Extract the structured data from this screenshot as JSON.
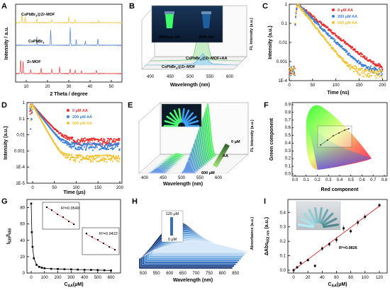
{
  "panels": {
    "A": {
      "letter": "A",
      "xlabel": "2 Theta / degree",
      "ylabel": "Intensity / a.u.",
      "xticks": [
        "10",
        "20",
        "30",
        "40",
        "50"
      ],
      "series": [
        {
          "name": "CsPbBr3@Zr-MOF",
          "color": "#f5c242"
        },
        {
          "name": "CsPbBr3",
          "color": "#4a7bd6"
        },
        {
          "name": "Zr-MOF",
          "color": "#e23b3b"
        }
      ]
    },
    "B": {
      "letter": "B",
      "xlabel": "Wavelength (nm)",
      "ylabel": "FL Intensity (a.u.)",
      "xticks": [
        "400",
        "450",
        "500",
        "550",
        "600"
      ],
      "traces": [
        "CsPbBr3@Zr-MOF+AA",
        "CsPbBr3@Zr-MOF"
      ],
      "inset": {
        "left_label": "Without AA",
        "right_label": "With AA"
      }
    },
    "C": {
      "letter": "C",
      "xlabel": "Time (ns)",
      "ylabel": "Intensity (a.u.)",
      "xticks": [
        "0",
        "50",
        "100",
        "150",
        "200"
      ],
      "yticks": [
        "1",
        "0.1",
        "0.01",
        "0.001",
        "1E-4"
      ],
      "legend": [
        {
          "label": "0 μM AA",
          "color": "#e83030"
        },
        {
          "label": "200 μM AA",
          "color": "#3b7fd6"
        },
        {
          "label": "500 μM AA",
          "color": "#f3c232"
        }
      ]
    },
    "D": {
      "letter": "D",
      "xlabel": "Time (μs)",
      "ylabel": "Intensity (a.u.)",
      "xticks": [
        "0",
        "50",
        "100",
        "150",
        "200"
      ],
      "yticks": [
        "1",
        "0.1",
        "0.01",
        "0.001",
        "1E-4",
        "1E-5"
      ],
      "legend": [
        {
          "label": "0 μM AA",
          "color": "#e83030"
        },
        {
          "label": "200 μM AA",
          "color": "#3b7fd6"
        },
        {
          "label": "500 μM AA",
          "color": "#f3c232"
        }
      ]
    },
    "E": {
      "letter": "E",
      "xlabel": "Wavelength (nm)",
      "ylabel": "FL Intensity (a.u.)",
      "xticks": [
        "400",
        "450",
        "500",
        "550",
        "600"
      ],
      "top_label": "0 μM",
      "bottom_label": "600 μM",
      "arrow_label": "AA"
    },
    "F": {
      "letter": "F",
      "xlabel": "Red component",
      "ylabel": "Green component",
      "xticks": [
        "0.0",
        "0.1",
        "0.2",
        "0.3",
        "0.4",
        "0.5",
        "0.6",
        "0.7",
        "0.8"
      ],
      "yticks": [
        "0.0",
        "0.1",
        "0.2",
        "0.3",
        "0.4",
        "0.5",
        "0.6",
        "0.7",
        "0.8",
        "0.9"
      ]
    },
    "G": {
      "letter": "G",
      "ylabel": "I520/I450",
      "xlabel": "CAA(μM)",
      "xticks": [
        "0",
        "100",
        "200",
        "300",
        "400",
        "500",
        "600"
      ],
      "yticks": [
        "0",
        "20",
        "40",
        "60",
        "80"
      ],
      "inset1": {
        "r2": "R²=0.9549"
      },
      "inset2": {
        "r2": "R²=0.9422"
      }
    },
    "H": {
      "letter": "H",
      "xlabel": "Wavelength (nm)",
      "ylabel": "Absorbance (a.u.)",
      "xticks": [
        "500",
        "550",
        "600",
        "650",
        "700",
        "750",
        "800",
        "850"
      ],
      "top_label": "120 μM",
      "bottom_label": "0 μM"
    },
    "I": {
      "letter": "I",
      "xlabel": "CAA(μM)",
      "ylabel": "ΔAbs652 nm (a.u.)",
      "xticks": [
        "0",
        "20",
        "40",
        "60",
        "80",
        "100",
        "120"
      ],
      "yticks": [
        "0.0",
        "0.1",
        "0.2",
        "0.3",
        "0.4"
      ],
      "r2": "R²=0.9826"
    }
  },
  "chart_data": [
    {
      "type": "line",
      "panel": "C",
      "title": "",
      "xlabel": "Time (ns)",
      "ylabel": "Intensity (a.u.)",
      "yscale": "log",
      "xlim": [
        0,
        200
      ],
      "ylim": [
        0.0001,
        1
      ],
      "series": [
        {
          "name": "0 μM AA",
          "tau": 22
        },
        {
          "name": "200 μM AA",
          "tau": 18
        },
        {
          "name": "500 μM AA",
          "tau": 14
        }
      ]
    },
    {
      "type": "scatter",
      "panel": "G",
      "title": "",
      "xlabel": "CAA(μM)",
      "ylabel": "I520/I450",
      "xlim": [
        0,
        650
      ],
      "ylim": [
        0,
        90
      ],
      "x": [
        0,
        5,
        10,
        20,
        40,
        60,
        80,
        100,
        150,
        200,
        250,
        300,
        350,
        400,
        450,
        500,
        550,
        600
      ],
      "values": [
        85,
        50,
        32,
        18,
        10,
        7.5,
        6.5,
        5.8,
        5.2,
        4.9,
        4.6,
        4.4,
        4.2,
        4.0,
        3.8,
        3.6,
        3.4,
        3.2
      ]
    },
    {
      "type": "scatter",
      "panel": "I",
      "title": "",
      "xlabel": "CAA(μM)",
      "ylabel": "ΔAbs652 nm (a.u.)",
      "xlim": [
        0,
        125
      ],
      "ylim": [
        0,
        0.47
      ],
      "x": [
        0,
        5,
        10,
        20,
        30,
        40,
        50,
        60,
        70,
        80,
        90,
        100,
        120
      ],
      "values": [
        0.0,
        0.02,
        0.05,
        0.07,
        0.03,
        0.15,
        0.18,
        0.21,
        0.29,
        0.27,
        0.33,
        0.37,
        0.45
      ],
      "errors": [
        0.01,
        0.01,
        0.01,
        0.01,
        0.01,
        0.015,
        0.015,
        0.02,
        0.02,
        0.015,
        0.02,
        0.02,
        0.015
      ],
      "fit": {
        "slope": 0.0037,
        "intercept": 0.0,
        "r2": "R²=0.9826"
      }
    }
  ]
}
